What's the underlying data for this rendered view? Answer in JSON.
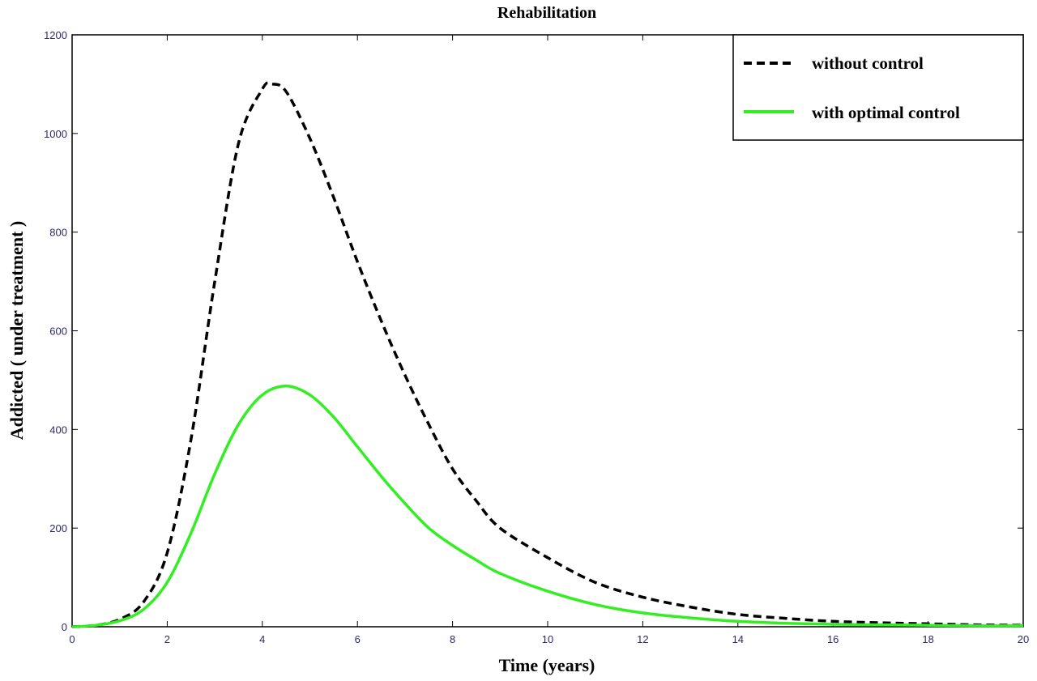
{
  "chart_data": {
    "type": "line",
    "title": "Rehabilitation",
    "xlabel": "Time (years)",
    "ylabel": "Addicted ( under treatment )",
    "xlim": [
      0,
      20
    ],
    "ylim": [
      0,
      1200
    ],
    "xticks": [
      0,
      2,
      4,
      6,
      8,
      10,
      12,
      14,
      16,
      18,
      20
    ],
    "yticks": [
      0,
      200,
      400,
      600,
      800,
      1000,
      1200
    ],
    "grid": false,
    "legend_position": "top-right",
    "series": [
      {
        "name": "without control",
        "color": "#000000",
        "dash": "dashed",
        "x": [
          0,
          0.5,
          1,
          1.5,
          2,
          2.5,
          3,
          3.5,
          4,
          4.2,
          4.5,
          5,
          5.5,
          6,
          6.5,
          7,
          7.5,
          8,
          8.5,
          9,
          10,
          11,
          12,
          13,
          14,
          15,
          16,
          17,
          18,
          19,
          20
        ],
        "y": [
          0,
          3,
          15,
          50,
          150,
          380,
          700,
          980,
          1090,
          1100,
          1085,
          990,
          870,
          740,
          620,
          510,
          410,
          320,
          255,
          200,
          140,
          90,
          60,
          40,
          25,
          17,
          11,
          8,
          6,
          4,
          3
        ]
      },
      {
        "name": "with optimal control",
        "color": "#33ee22",
        "dash": "solid",
        "x": [
          0,
          0.5,
          1,
          1.5,
          2,
          2.5,
          3,
          3.5,
          4,
          4.5,
          5,
          5.5,
          6,
          6.5,
          7,
          7.5,
          8,
          8.5,
          9,
          10,
          11,
          12,
          13,
          14,
          15,
          16,
          17,
          18,
          19,
          20
        ],
        "y": [
          0,
          3,
          12,
          35,
          90,
          190,
          310,
          410,
          470,
          488,
          470,
          425,
          365,
          305,
          250,
          200,
          165,
          135,
          108,
          72,
          45,
          28,
          18,
          11,
          7,
          5,
          4,
          3,
          2,
          2
        ]
      }
    ]
  }
}
